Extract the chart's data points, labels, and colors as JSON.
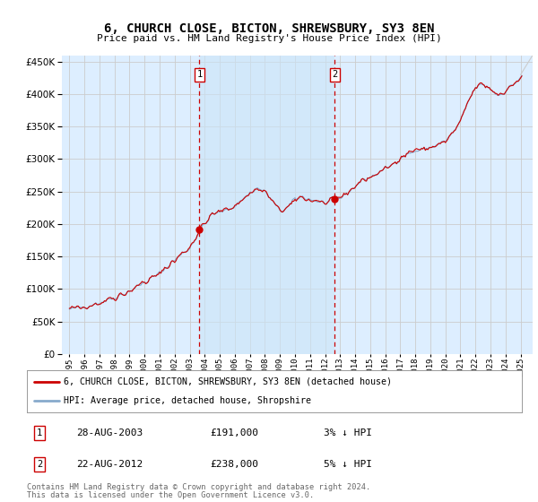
{
  "title": "6, CHURCH CLOSE, BICTON, SHREWSBURY, SY3 8EN",
  "subtitle": "Price paid vs. HM Land Registry's House Price Index (HPI)",
  "background_color": "#ffffff",
  "plot_bg_color": "#ddeeff",
  "plot_bg_highlight": "#cce4f7",
  "grid_color": "#cccccc",
  "red_color": "#cc0000",
  "blue_color": "#88aacc",
  "vline_color": "#cc0000",
  "legend_label_red": "6, CHURCH CLOSE, BICTON, SHREWSBURY, SY3 8EN (detached house)",
  "legend_label_blue": "HPI: Average price, detached house, Shropshire",
  "sale1_date": "28-AUG-2003",
  "sale1_price": 191000,
  "sale1_hpi": "3% ↓ HPI",
  "sale2_date": "22-AUG-2012",
  "sale2_price": 238000,
  "sale2_hpi": "5% ↓ HPI",
  "footer": "Contains HM Land Registry data © Crown copyright and database right 2024.\nThis data is licensed under the Open Government Licence v3.0.",
  "sale1_x": 2003.65,
  "sale2_x": 2012.65,
  "sale1_y": 191000,
  "sale2_y": 238000,
  "ylim": [
    0,
    460000
  ],
  "yticks": [
    0,
    50000,
    100000,
    150000,
    200000,
    250000,
    300000,
    350000,
    400000,
    450000
  ],
  "xlim_left": 1994.5,
  "xlim_right": 2025.8
}
